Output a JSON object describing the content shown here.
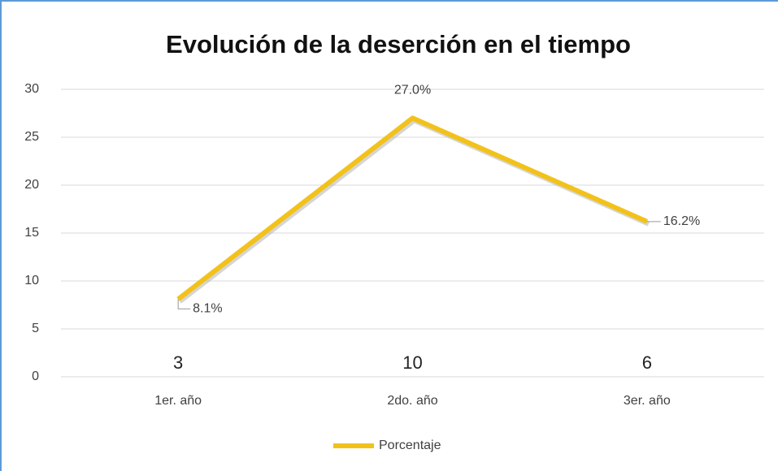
{
  "chart_data": {
    "type": "line",
    "title": "Evolución de la deserción en el tiempo",
    "categories": [
      "1er. año",
      "2do. año",
      "3er. año"
    ],
    "series": [
      {
        "name": "Porcentaje",
        "color": "#f2c21b",
        "values": [
          8.1,
          27.0,
          16.2
        ],
        "value_labels": [
          "8.1%",
          "27.0%",
          "16.2%"
        ]
      }
    ],
    "counts": [
      3,
      10,
      6
    ],
    "ylim": [
      0,
      30
    ],
    "yticks": [
      0,
      5,
      10,
      15,
      20,
      25,
      30
    ],
    "grid": true,
    "legend": "bottom"
  }
}
